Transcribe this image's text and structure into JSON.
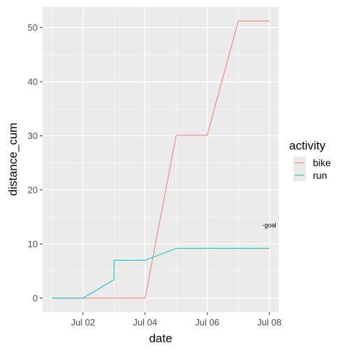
{
  "chart_data": {
    "type": "line",
    "title": "",
    "xlabel": "date",
    "ylabel": "distance_cum",
    "x_ticks": [
      "Jul 02",
      "Jul 04",
      "Jul 06",
      "Jul 08"
    ],
    "x_tick_days": [
      2,
      4,
      6,
      8
    ],
    "y_ticks": [
      0,
      10,
      20,
      30,
      40,
      50
    ],
    "xlim_days": [
      0.7,
      8.3
    ],
    "ylim": [
      -2.6,
      53.8
    ],
    "grid": true,
    "legend": {
      "title": "activity",
      "placement": "right"
    },
    "series": [
      {
        "name": "bike",
        "color": "#F8766D",
        "x_days": [
          1,
          2,
          3,
          4,
          5,
          6,
          7,
          8
        ],
        "values": [
          0,
          0,
          0,
          0,
          30.1,
          30.1,
          51.2,
          51.2
        ]
      },
      {
        "name": "run",
        "color": "#00BFC4",
        "x_days": [
          1,
          2,
          3,
          3,
          4,
          5,
          6,
          7,
          8
        ],
        "values": [
          0,
          0,
          3.4,
          7.0,
          7.0,
          9.2,
          9.2,
          9.2,
          9.2
        ]
      }
    ],
    "annotations": [
      {
        "text": "-goal",
        "x_day": 8,
        "y": 13.5
      }
    ]
  }
}
